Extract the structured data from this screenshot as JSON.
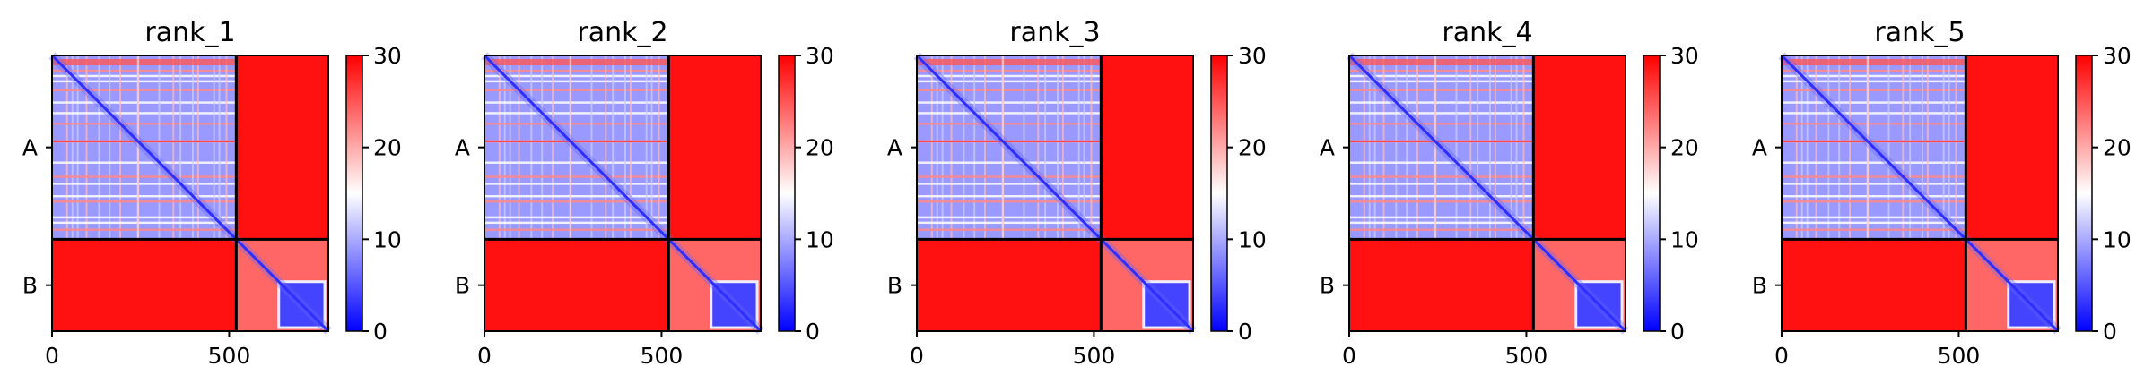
{
  "chart_data": [
    {
      "type": "heatmap",
      "title": "rank_1",
      "colormap": "bwr",
      "colors": {
        "low": "#0000ff",
        "mid": "#ffffff",
        "high": "#ff0000",
        "divider": "#000000"
      },
      "clim": [
        0,
        30
      ],
      "colorbar_ticks": [
        "0",
        "10",
        "20",
        "30"
      ],
      "x_ticks": [
        "0",
        "500"
      ],
      "y_labels": [
        "A",
        "B"
      ],
      "chain_boundary": 520,
      "total_length": 780,
      "xlim": [
        0,
        780
      ],
      "ylim": [
        780,
        0
      ]
    },
    {
      "type": "heatmap",
      "title": "rank_2",
      "colormap": "bwr",
      "colors": {
        "low": "#0000ff",
        "mid": "#ffffff",
        "high": "#ff0000",
        "divider": "#000000"
      },
      "clim": [
        0,
        30
      ],
      "colorbar_ticks": [
        "0",
        "10",
        "20",
        "30"
      ],
      "x_ticks": [
        "0",
        "500"
      ],
      "y_labels": [
        "A",
        "B"
      ],
      "chain_boundary": 520,
      "total_length": 780,
      "xlim": [
        0,
        780
      ],
      "ylim": [
        780,
        0
      ]
    },
    {
      "type": "heatmap",
      "title": "rank_3",
      "colormap": "bwr",
      "colors": {
        "low": "#0000ff",
        "mid": "#ffffff",
        "high": "#ff0000",
        "divider": "#000000"
      },
      "clim": [
        0,
        30
      ],
      "colorbar_ticks": [
        "0",
        "10",
        "20",
        "30"
      ],
      "x_ticks": [
        "0",
        "500"
      ],
      "y_labels": [
        "A",
        "B"
      ],
      "chain_boundary": 520,
      "total_length": 780,
      "xlim": [
        0,
        780
      ],
      "ylim": [
        780,
        0
      ]
    },
    {
      "type": "heatmap",
      "title": "rank_4",
      "colormap": "bwr",
      "colors": {
        "low": "#0000ff",
        "mid": "#ffffff",
        "high": "#ff0000",
        "divider": "#000000"
      },
      "clim": [
        0,
        30
      ],
      "colorbar_ticks": [
        "0",
        "10",
        "20",
        "30"
      ],
      "x_ticks": [
        "0",
        "500"
      ],
      "y_labels": [
        "A",
        "B"
      ],
      "chain_boundary": 520,
      "total_length": 780,
      "xlim": [
        0,
        780
      ],
      "ylim": [
        780,
        0
      ]
    },
    {
      "type": "heatmap",
      "title": "rank_5",
      "colormap": "bwr",
      "colors": {
        "low": "#0000ff",
        "mid": "#ffffff",
        "high": "#ff0000",
        "divider": "#000000"
      },
      "clim": [
        0,
        30
      ],
      "colorbar_ticks": [
        "0",
        "10",
        "20",
        "30"
      ],
      "x_ticks": [
        "0",
        "500"
      ],
      "y_labels": [
        "A",
        "B"
      ],
      "chain_boundary": 520,
      "total_length": 780,
      "xlim": [
        0,
        780
      ],
      "ylim": [
        780,
        0
      ]
    }
  ]
}
